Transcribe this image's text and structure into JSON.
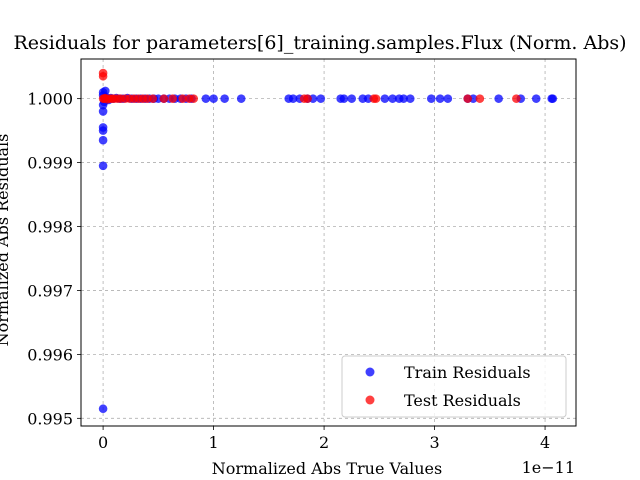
{
  "chart_data": {
    "type": "scatter",
    "title": "Residuals for parameters[6]_training.samples.Flux (Norm. Abs)",
    "xlabel": "Normalized Abs True Values",
    "ylabel": "Normalized Abs Residuals",
    "x_offset_label": "1e−11",
    "xlim": [
      -0.2,
      4.28
    ],
    "ylim": [
      0.99488,
      1.00062
    ],
    "x_ticks": [
      0,
      1,
      2,
      3,
      4
    ],
    "x_tick_labels": [
      "0",
      "1",
      "2",
      "3",
      "4"
    ],
    "y_ticks": [
      0.995,
      0.996,
      0.997,
      0.998,
      0.999,
      1.0
    ],
    "y_tick_labels": [
      "0.995",
      "0.996",
      "0.997",
      "0.998",
      "0.999",
      "1.000"
    ],
    "grid": true,
    "legend_position": "lower-right",
    "series": [
      {
        "name": "Train Residuals",
        "color": "#0000ff",
        "points": [
          [
            0.0,
            0.99515
          ],
          [
            0.0,
            0.99895
          ],
          [
            0.0,
            0.99935
          ],
          [
            0.0,
            0.9995
          ],
          [
            0.0,
            0.99955
          ],
          [
            0.0,
            0.9998
          ],
          [
            0.0,
            0.9999
          ],
          [
            0.0,
            1.00005
          ],
          [
            0.0,
            1.0001
          ],
          [
            0.01,
            0.99995
          ],
          [
            0.02,
            1.00012
          ],
          [
            0.03,
            1.00002
          ],
          [
            0.05,
            0.99998
          ],
          [
            0.07,
            1.00001
          ],
          [
            0.09,
            1.0
          ],
          [
            0.12,
            1.00001
          ],
          [
            0.15,
            1.0
          ],
          [
            0.18,
            1.0
          ],
          [
            0.22,
            1.00001
          ],
          [
            0.26,
            1.0
          ],
          [
            0.3,
            1.0
          ],
          [
            0.34,
            1.0
          ],
          [
            0.38,
            1.0
          ],
          [
            0.42,
            1.0
          ],
          [
            0.46,
            1.0
          ],
          [
            0.5,
            1.0
          ],
          [
            0.55,
            1.0
          ],
          [
            0.6,
            1.0
          ],
          [
            0.65,
            1.0
          ],
          [
            0.7,
            1.0
          ],
          [
            0.75,
            1.0
          ],
          [
            0.8,
            1.0
          ],
          [
            0.93,
            1.0
          ],
          [
            1.0,
            1.0
          ],
          [
            1.1,
            1.0
          ],
          [
            1.25,
            1.0
          ],
          [
            1.68,
            1.0
          ],
          [
            1.72,
            1.0
          ],
          [
            1.78,
            1.0
          ],
          [
            1.85,
            1.0
          ],
          [
            1.9,
            1.0
          ],
          [
            1.97,
            1.0
          ],
          [
            2.15,
            1.0
          ],
          [
            2.18,
            1.0
          ],
          [
            2.25,
            1.0
          ],
          [
            2.35,
            1.0
          ],
          [
            2.4,
            1.0
          ],
          [
            2.55,
            1.0
          ],
          [
            2.62,
            1.0
          ],
          [
            2.68,
            1.0
          ],
          [
            2.72,
            1.0
          ],
          [
            2.78,
            1.0
          ],
          [
            2.97,
            1.0
          ],
          [
            3.05,
            1.0
          ],
          [
            3.12,
            1.0
          ],
          [
            3.3,
            1.0
          ],
          [
            3.35,
            1.0
          ],
          [
            3.58,
            1.0
          ],
          [
            3.78,
            1.0
          ],
          [
            3.92,
            1.0
          ],
          [
            4.06,
            1.0
          ],
          [
            4.07,
            1.0
          ]
        ]
      },
      {
        "name": "Test Residuals",
        "color": "#ff0000",
        "points": [
          [
            0.0,
            1.00035
          ],
          [
            0.0,
            1.0004
          ],
          [
            0.0,
            1.0
          ],
          [
            0.01,
            1.0
          ],
          [
            0.02,
            1.00001
          ],
          [
            0.04,
            0.99999
          ],
          [
            0.06,
            1.0
          ],
          [
            0.08,
            1.0
          ],
          [
            0.1,
            1.0
          ],
          [
            0.13,
            1.0
          ],
          [
            0.16,
            1.0
          ],
          [
            0.2,
            1.0
          ],
          [
            0.24,
            1.0
          ],
          [
            0.28,
            1.0
          ],
          [
            0.32,
            1.0
          ],
          [
            0.36,
            1.0
          ],
          [
            0.4,
            1.0
          ],
          [
            0.45,
            1.0
          ],
          [
            0.55,
            1.0
          ],
          [
            0.63,
            1.0
          ],
          [
            0.72,
            1.0
          ],
          [
            0.78,
            1.0
          ],
          [
            0.82,
            1.0
          ],
          [
            1.82,
            1.0
          ],
          [
            1.85,
            1.0
          ],
          [
            2.45,
            1.0
          ],
          [
            2.47,
            1.0
          ],
          [
            3.3,
            1.0
          ],
          [
            3.41,
            1.0
          ],
          [
            3.74,
            1.0
          ]
        ]
      }
    ]
  }
}
